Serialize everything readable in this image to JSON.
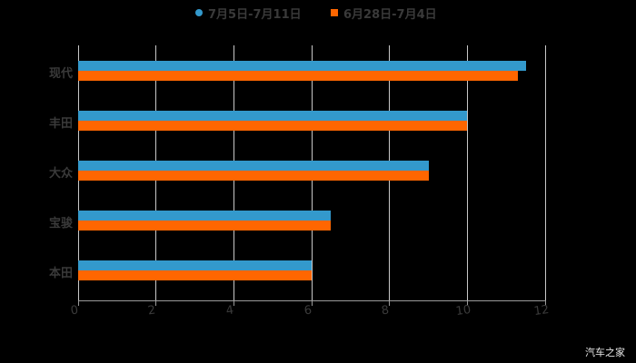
{
  "chart_data": {
    "type": "bar",
    "orientation": "horizontal",
    "title": "",
    "xlabel": "",
    "ylabel": "",
    "categories": [
      "现代",
      "丰田",
      "大众",
      "宝骏",
      "本田"
    ],
    "series": [
      {
        "name": "7月5日-7月11日",
        "color": "#3399cc",
        "values": [
          11.5,
          10,
          9,
          6.5,
          6
        ]
      },
      {
        "name": "6月28日-7月4日",
        "color": "#ff6600",
        "values": [
          11.3,
          10,
          9,
          6.5,
          6
        ]
      }
    ],
    "xlim": [
      0,
      12
    ],
    "xticks": [
      "0",
      "2",
      "4",
      "6",
      "8",
      "10",
      "12"
    ],
    "grid": true,
    "legend_position": "top"
  },
  "legend": {
    "items": [
      {
        "label": "7月5日-7月11日",
        "color": "#3399cc",
        "marker": "circle"
      },
      {
        "label": "6月28日-7月4日",
        "color": "#ff6600",
        "marker": "square"
      }
    ]
  },
  "watermark": "汽车之家"
}
